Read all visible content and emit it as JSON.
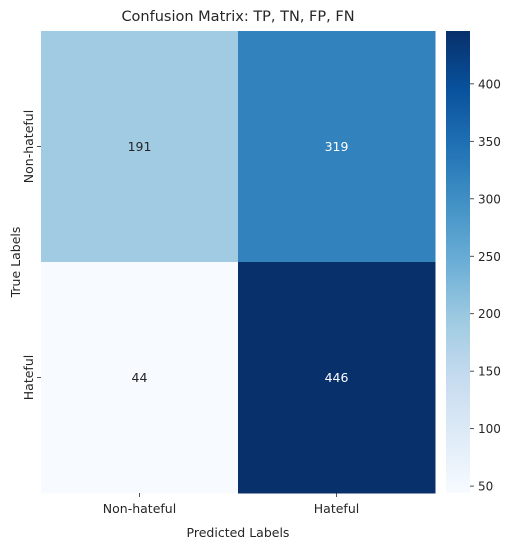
{
  "chart_data": {
    "type": "heatmap",
    "title": "Confusion Matrix: TP, TN, FP, FN",
    "xlabel": "Predicted Labels",
    "ylabel": "True Labels",
    "x_categories": [
      "Non-hateful",
      "Hateful"
    ],
    "y_categories": [
      "Non-hateful",
      "Hateful"
    ],
    "values": [
      [
        191,
        319
      ],
      [
        44,
        446
      ]
    ],
    "colormap": "Blues",
    "colorbar": {
      "ticks": [
        50,
        100,
        150,
        200,
        250,
        300,
        350,
        400
      ],
      "range": [
        44,
        446
      ]
    },
    "grid": false
  }
}
